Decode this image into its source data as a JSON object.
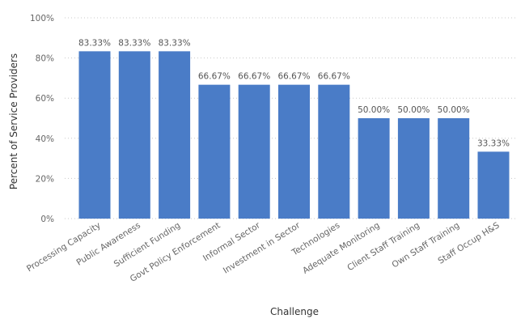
{
  "chart_data": {
    "type": "bar",
    "title": "",
    "xlabel": "Challenge",
    "ylabel": "Percent of Service Providers",
    "ylim": [
      0,
      100
    ],
    "yticks": [
      "0%",
      "20%",
      "40%",
      "60%",
      "80%",
      "100%"
    ],
    "grid": true,
    "legend": "none",
    "bar_color": "#4A7CC7",
    "categories": [
      "Processing Capacity",
      "Public Awareness",
      "Sufficient Funding",
      "Govt Policy Enforcement",
      "Informal Sector",
      "Investment in Sector",
      "Technologies",
      "Adequate Monitoring",
      "Client Staff Training",
      "Own Staff Training",
      "Staff Occup H&S"
    ],
    "values": [
      83.33,
      83.33,
      83.33,
      66.67,
      66.67,
      66.67,
      66.67,
      50.0,
      50.0,
      50.0,
      33.33
    ],
    "data_labels": [
      "83.33%",
      "83.33%",
      "83.33%",
      "66.67%",
      "66.67%",
      "66.67%",
      "66.67%",
      "50.00%",
      "50.00%",
      "50.00%",
      "33.33%"
    ]
  }
}
